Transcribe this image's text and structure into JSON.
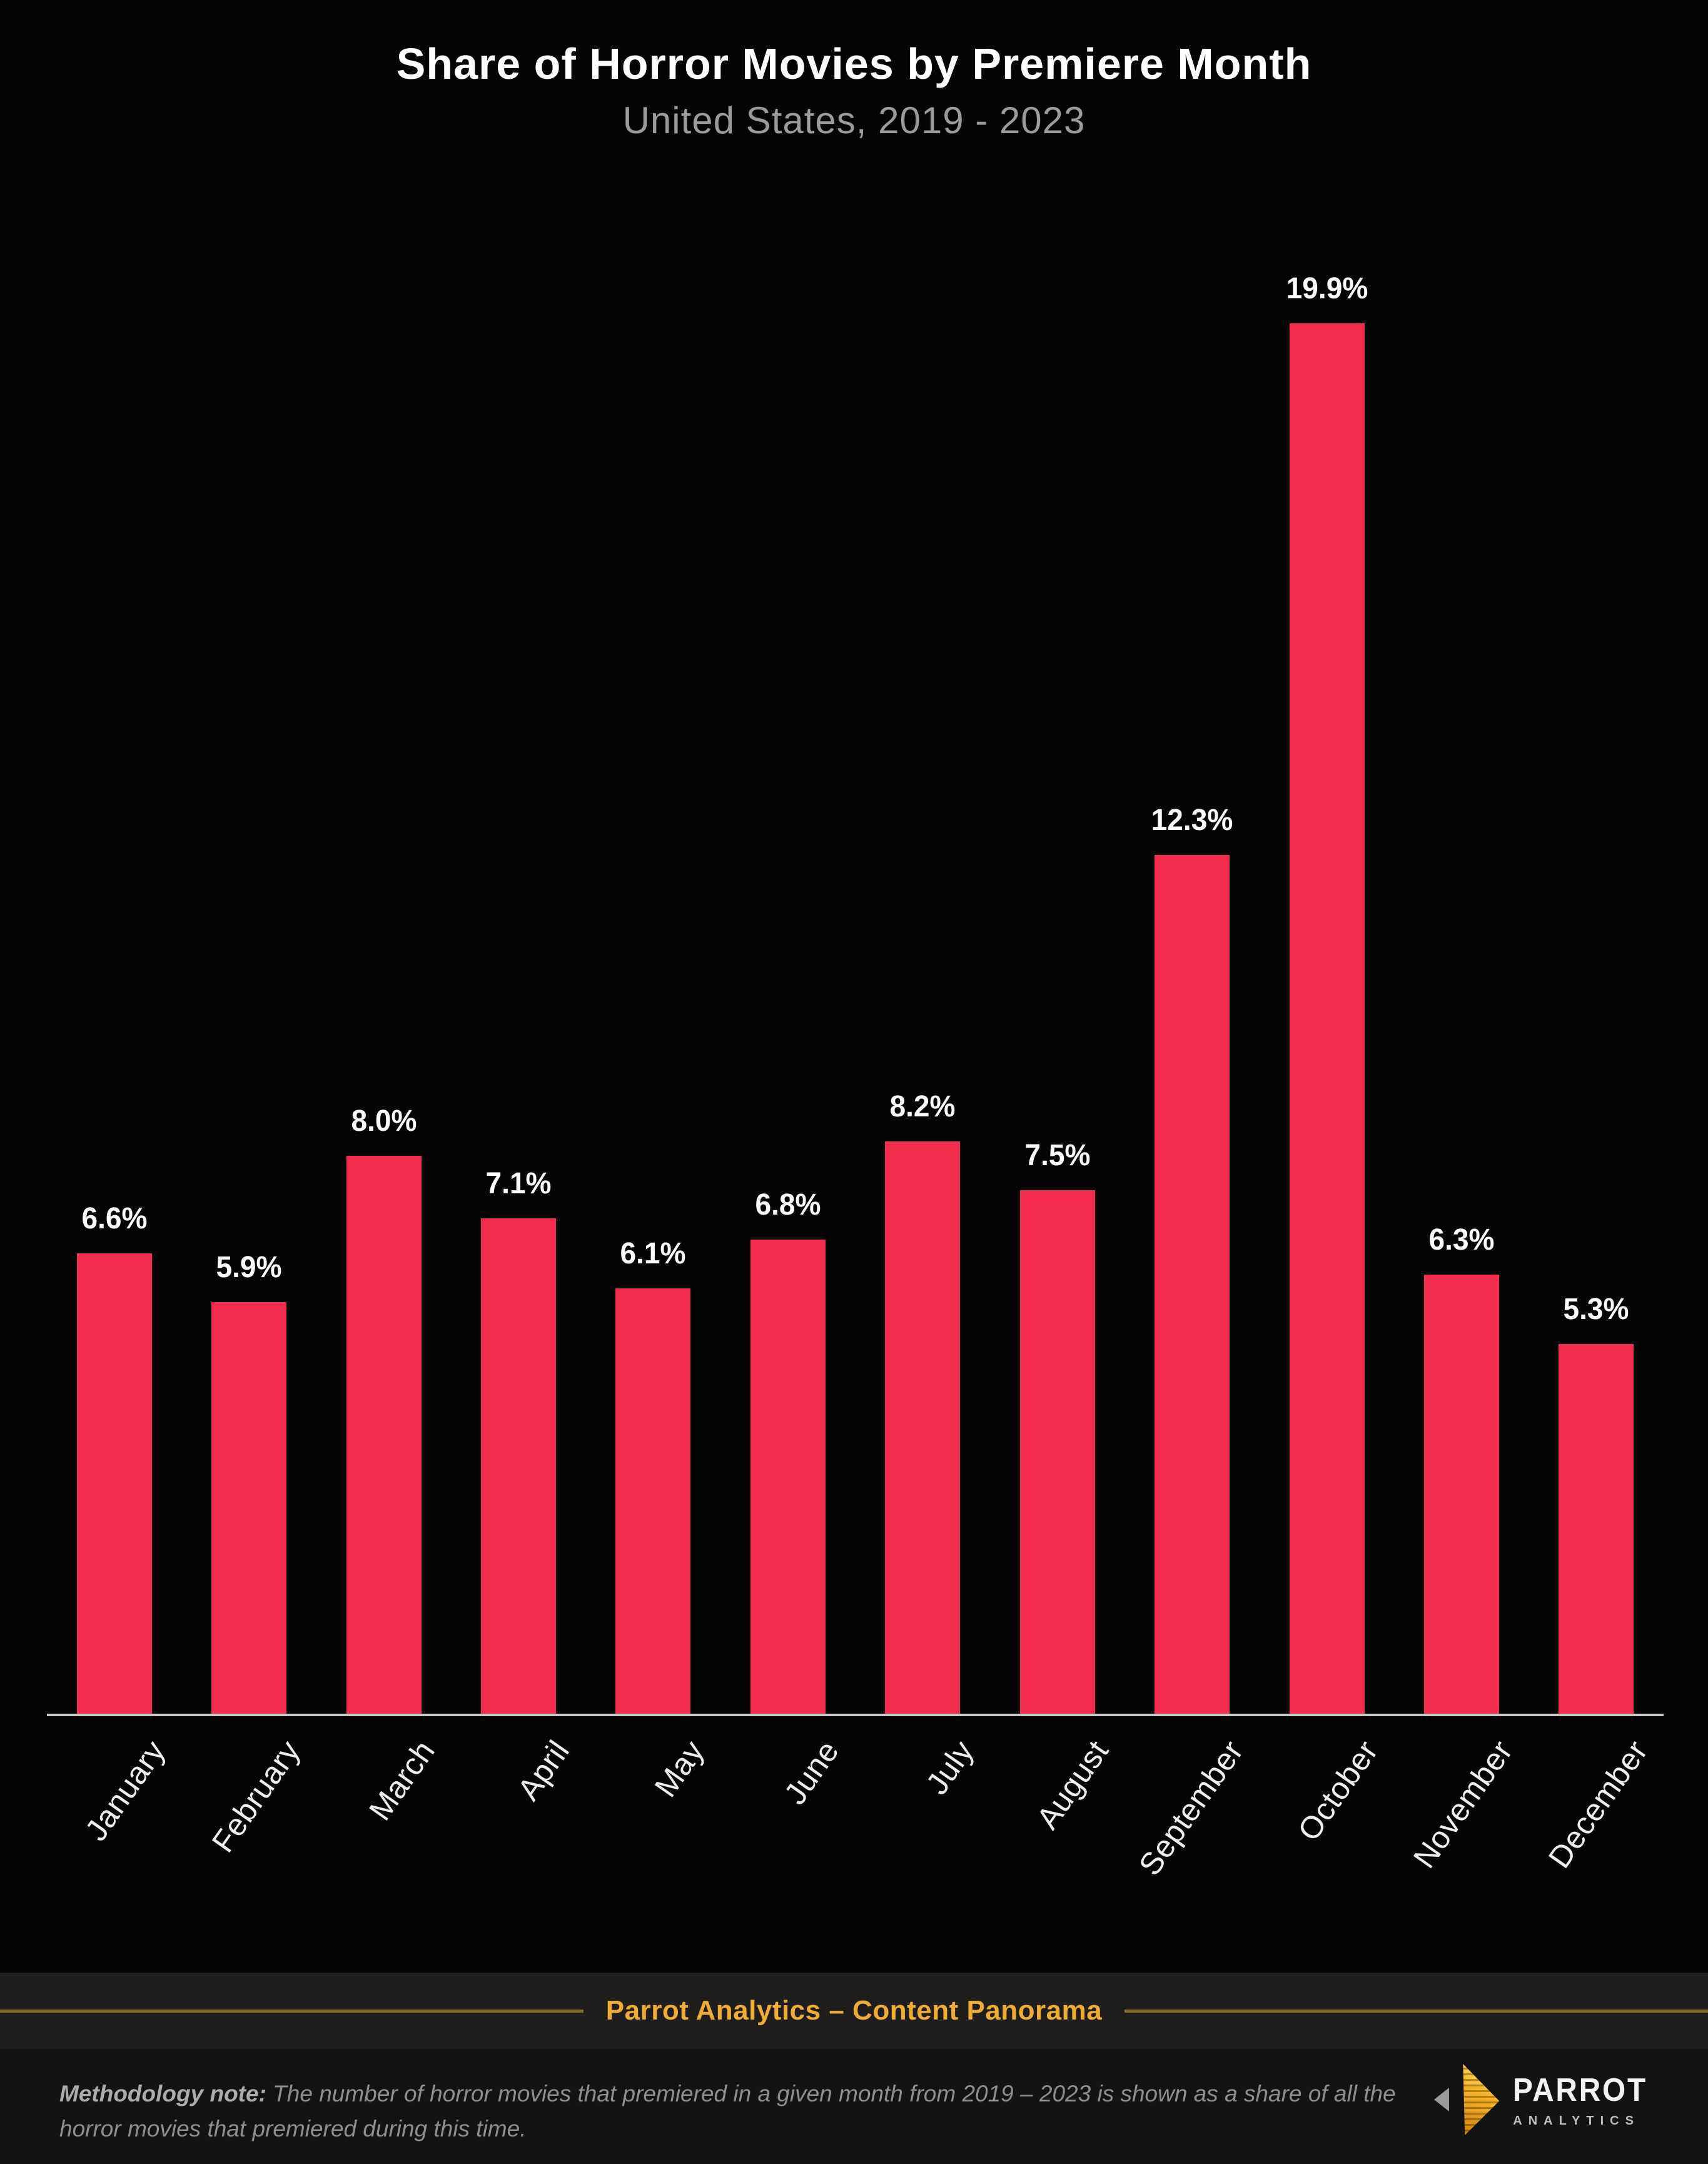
{
  "header": {
    "title": "Share of Horror Movies by Premiere Month",
    "subtitle": "United States, 2019 - 2023"
  },
  "chart_data": {
    "type": "bar",
    "title": "Share of Horror Movies by Premiere Month",
    "subtitle": "United States, 2019 - 2023",
    "categories": [
      "January",
      "February",
      "March",
      "April",
      "May",
      "June",
      "July",
      "August",
      "September",
      "October",
      "November",
      "December"
    ],
    "values": [
      6.6,
      5.9,
      8.0,
      7.1,
      6.1,
      6.8,
      8.2,
      7.5,
      12.3,
      19.9,
      6.3,
      5.3
    ],
    "value_labels": [
      "6.6%",
      "5.9%",
      "8.0%",
      "7.1%",
      "6.1%",
      "6.8%",
      "8.2%",
      "7.5%",
      "12.3%",
      "19.9%",
      "6.3%",
      "5.3%"
    ],
    "xlabel": "",
    "ylabel": "",
    "ylim": [
      0,
      21
    ],
    "grid": false,
    "legend": false,
    "bar_color": "#F22D4E",
    "value_label_color": "#FFFFFF",
    "axis_line_color": "#C9C9C9",
    "background_color": "#050505"
  },
  "footer": {
    "banner_text": "Parrot Analytics – Content Panorama",
    "accent_color": "#F0AD33",
    "rule_color": "#826A24"
  },
  "note": {
    "label": "Methodology note:",
    "text": " The number of horror movies that premiered in a given month from 2019 – 2023 is shown as a share of all the horror movies that premiered during this time."
  },
  "logo": {
    "brand": "PARROT",
    "sub": "ANALYTICS",
    "icon_gold": "#F6B125",
    "icon_gray": "#9A9A9A"
  }
}
